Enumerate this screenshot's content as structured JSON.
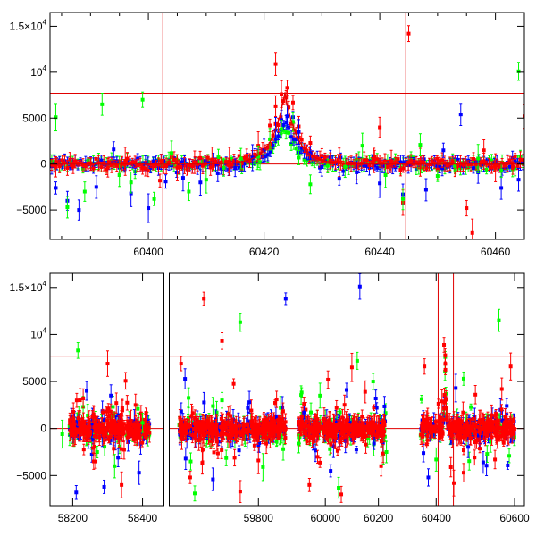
{
  "chart_data": [
    {
      "type": "scatter",
      "title": "",
      "xlabel": "",
      "ylabel": "",
      "xlim": [
        60383,
        60465
      ],
      "ylim": [
        -8200,
        16500
      ],
      "x_ticks": [
        {
          "value": 60400,
          "label": "60400"
        },
        {
          "value": 60420,
          "label": "60420"
        },
        {
          "value": 60440,
          "label": "60440"
        },
        {
          "value": 60460,
          "label": "60460"
        }
      ],
      "y_ticks": [
        {
          "value": -5000,
          "label": "−5000"
        },
        {
          "value": 0,
          "label": "0"
        },
        {
          "value": 5000,
          "label": "5000"
        },
        {
          "value": 10000,
          "label": "10",
          "sup": "4"
        },
        {
          "value": 15000,
          "label": "1.5×10",
          "sup": "4"
        }
      ],
      "hlines": [
        0,
        7700
      ],
      "vlines": [
        60402.5,
        60444.5
      ],
      "model_peak": {
        "t0": 60423.6,
        "tau": 2.2,
        "amp": 7800
      },
      "grid": false,
      "series": [
        {
          "color": "#ff0000",
          "values": [
            [
              60384,
              -300
            ],
            [
              60387,
              -200
            ],
            [
              60390,
              100
            ],
            [
              60393,
              -400
            ],
            [
              60396,
              300
            ],
            [
              60399,
              -500
            ],
            [
              60402,
              -1800
            ],
            [
              60405,
              -400
            ],
            [
              60408,
              200
            ],
            [
              60411,
              500
            ],
            [
              60414,
              300
            ],
            [
              60417,
              900
            ],
            [
              60419,
              2000
            ],
            [
              60421,
              4200
            ],
            [
              60422,
              6300
            ],
            [
              60423,
              7600
            ],
            [
              60424,
              8300
            ],
            [
              60425,
              6700
            ],
            [
              60426,
              4100
            ],
            [
              60428,
              2300
            ],
            [
              60430,
              900
            ],
            [
              60433,
              200
            ],
            [
              60436,
              -300
            ],
            [
              60439,
              400
            ],
            [
              60442,
              300
            ],
            [
              60444,
              -4200
            ],
            [
              60445,
              14200
            ],
            [
              60447,
              200
            ],
            [
              60450,
              -600
            ],
            [
              60453,
              -200
            ],
            [
              60455,
              -4800
            ],
            [
              60456,
              -7500
            ],
            [
              60458,
              1500
            ],
            [
              60460,
              -400
            ],
            [
              60463,
              -300
            ],
            [
              60465,
              5200
            ],
            [
              60422,
              10900
            ],
            [
              60440,
              4000
            ]
          ]
        },
        {
          "color": "#0000ff",
          "values": [
            [
              60384,
              -2600
            ],
            [
              60386,
              -4000
            ],
            [
              60388,
              -5000
            ],
            [
              60391,
              -2500
            ],
            [
              60394,
              1600
            ],
            [
              60397,
              -3200
            ],
            [
              60400,
              -4800
            ],
            [
              60403,
              -1900
            ],
            [
              60406,
              -1500
            ],
            [
              60409,
              -2000
            ],
            [
              60412,
              -1000
            ],
            [
              60415,
              -400
            ],
            [
              60418,
              700
            ],
            [
              60420,
              1500
            ],
            [
              60422,
              3700
            ],
            [
              60423,
              4800
            ],
            [
              60424,
              5200
            ],
            [
              60425,
              5100
            ],
            [
              60426,
              3500
            ],
            [
              60428,
              1200
            ],
            [
              60430,
              -300
            ],
            [
              60433,
              -1600
            ],
            [
              60436,
              -900
            ],
            [
              60440,
              -2100
            ],
            [
              60444,
              -3300
            ],
            [
              60448,
              -2800
            ],
            [
              60451,
              1500
            ],
            [
              60454,
              5400
            ],
            [
              60457,
              -900
            ],
            [
              60461,
              -2600
            ],
            [
              60464,
              -1700
            ]
          ]
        },
        {
          "color": "#00ff00",
          "values": [
            [
              60384,
              5100
            ],
            [
              60386,
              -4700
            ],
            [
              60389,
              -3000
            ],
            [
              60392,
              6500
            ],
            [
              60395,
              -1200
            ],
            [
              60397,
              -2000
            ],
            [
              60399,
              7000
            ],
            [
              60401,
              -3800
            ],
            [
              60404,
              1200
            ],
            [
              60407,
              -3000
            ],
            [
              60410,
              -1700
            ],
            [
              60413,
              -400
            ],
            [
              60416,
              600
            ],
            [
              60419,
              800
            ],
            [
              60421,
              2700
            ],
            [
              60423,
              3800
            ],
            [
              60425,
              4600
            ],
            [
              60426,
              700
            ],
            [
              60428,
              -2200
            ],
            [
              60431,
              -200
            ],
            [
              60434,
              -300
            ],
            [
              60437,
              2000
            ],
            [
              60441,
              -1200
            ],
            [
              60444,
              -3800
            ],
            [
              60447,
              2100
            ],
            [
              60450,
              -1300
            ],
            [
              60453,
              -200
            ],
            [
              60457,
              600
            ],
            [
              60461,
              -700
            ],
            [
              60464,
              10100
            ],
            [
              60466,
              5200
            ]
          ]
        }
      ]
    },
    {
      "type": "scatter",
      "title": "",
      "xlabel": "",
      "ylabel": "",
      "ylim": [
        -8200,
        16500
      ],
      "x_ticks": [
        {
          "value": 58200,
          "label": "58200",
          "panel": 0
        },
        {
          "value": 58400,
          "label": "58400",
          "panel": 0
        },
        {
          "value": 59800,
          "label": "59800",
          "panel": 1
        },
        {
          "value": 60000,
          "label": "60000",
          "panel": 2
        },
        {
          "value": 60200,
          "label": "60200",
          "panel": 2
        },
        {
          "value": 60400,
          "label": "60400",
          "panel": 3
        },
        {
          "value": 60600,
          "label": "60600",
          "panel": 3
        }
      ],
      "y_ticks": [
        {
          "value": -5000,
          "label": "−5000"
        },
        {
          "value": 0,
          "label": "0"
        },
        {
          "value": 5000,
          "label": "5000"
        },
        {
          "value": 10000,
          "label": "10",
          "sup": "4"
        },
        {
          "value": 15000,
          "label": "1.5×10",
          "sup": "4"
        }
      ],
      "x_segments": [
        {
          "xlim": [
            58135,
            58460
          ],
          "seasons": [
            [
              58190,
              58420
            ]
          ]
        },
        {
          "xlim": [
            59605,
            59880
          ],
          "seasons": [
            [
              59625,
              59860
            ]
          ]
        },
        {
          "xlim": [
            59885,
            60255
          ],
          "seasons": [
            [
              59900,
              60230
            ]
          ]
        },
        {
          "xlim": [
            60290,
            60625
          ],
          "seasons": [
            [
              60360,
              60600
            ]
          ]
        }
      ],
      "hlines": [
        0,
        7700
      ],
      "vlines": [
        60405,
        60444
      ],
      "grid": false,
      "series": [
        {
          "color": "#ff0000",
          "values": [
            [
              58230,
              3200
            ],
            [
              58260,
              -3500
            ],
            [
              58300,
              6900
            ],
            [
              58340,
              -6000
            ],
            [
              58380,
              2500
            ],
            [
              59630,
              6900
            ],
            [
              59650,
              -5200
            ],
            [
              59680,
              13800
            ],
            [
              59720,
              9300
            ],
            [
              59760,
              -6700
            ],
            [
              59800,
              -3400
            ],
            [
              59840,
              3100
            ],
            [
              59940,
              -6000
            ],
            [
              60010,
              5200
            ],
            [
              60060,
              -7000
            ],
            [
              60100,
              6500
            ],
            [
              60150,
              3900
            ],
            [
              60210,
              -4000
            ],
            [
              60370,
              6600
            ],
            [
              60420,
              8900
            ],
            [
              60445,
              -5800
            ],
            [
              60500,
              3600
            ],
            [
              60550,
              -3300
            ],
            [
              60590,
              6600
            ],
            [
              60470,
              -4700
            ]
          ]
        },
        {
          "color": "#0000ff",
          "values": [
            [
              58240,
              4000
            ],
            [
              58290,
              -6200
            ],
            [
              58330,
              -3100
            ],
            [
              58390,
              -4700
            ],
            [
              59640,
              -3200
            ],
            [
              59700,
              -5400
            ],
            [
              59780,
              2800
            ],
            [
              59860,
              13800
            ],
            [
              59920,
              1700
            ],
            [
              60020,
              -4500
            ],
            [
              60080,
              4100
            ],
            [
              60130,
              15100
            ],
            [
              60190,
              3200
            ],
            [
              60380,
              -5200
            ],
            [
              60450,
              4300
            ],
            [
              60520,
              -3600
            ],
            [
              60580,
              2400
            ],
            [
              58210,
              -6800
            ]
          ]
        },
        {
          "color": "#00ff00",
          "values": [
            [
              58170,
              -600
            ],
            [
              58215,
              8300
            ],
            [
              58270,
              -2500
            ],
            [
              58320,
              -4000
            ],
            [
              58400,
              600
            ],
            [
              59660,
              -6900
            ],
            [
              59720,
              3000
            ],
            [
              59760,
              11300
            ],
            [
              59810,
              -4100
            ],
            [
              59900,
              -1600
            ],
            [
              59980,
              3500
            ],
            [
              60050,
              -6300
            ],
            [
              60120,
              7200
            ],
            [
              60180,
              5000
            ],
            [
              60230,
              -2500
            ],
            [
              60400,
              -3300
            ],
            [
              60470,
              5300
            ],
            [
              60530,
              -2700
            ],
            [
              60560,
              11500
            ]
          ]
        }
      ]
    }
  ]
}
